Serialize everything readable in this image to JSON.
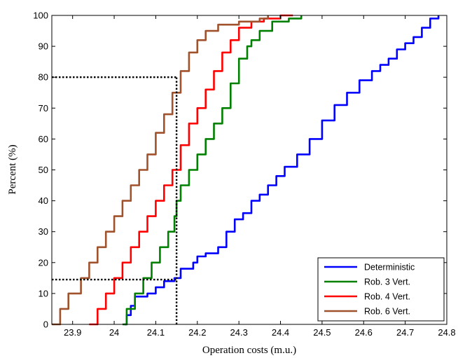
{
  "chart_data": {
    "type": "line",
    "title": "",
    "xlabel": "Operation costs (m.u.)",
    "ylabel": "Percent (%)",
    "xlim": [
      23.85,
      24.8
    ],
    "ylim": [
      0,
      100
    ],
    "x_ticks": [
      23.9,
      24,
      24.1,
      24.2,
      24.3,
      24.4,
      24.5,
      24.6,
      24.7,
      24.8
    ],
    "x_tick_labels": [
      "23.9",
      "24",
      "24.1",
      "24.2",
      "24.3",
      "24.4",
      "24.5",
      "24.6",
      "24.7",
      "24.8"
    ],
    "y_ticks": [
      0,
      10,
      20,
      30,
      40,
      50,
      60,
      70,
      80,
      90,
      100
    ],
    "y_tick_labels": [
      "0",
      "10",
      "20",
      "30",
      "40",
      "50",
      "60",
      "70",
      "80",
      "90",
      "100"
    ],
    "grid": false,
    "legend_position": "bottom-right",
    "series": [
      {
        "name": "Deterministic",
        "color": "#0000ff",
        "x": [
          24.025,
          24.03,
          24.04,
          24.05,
          24.08,
          24.1,
          24.12,
          24.145,
          24.16,
          24.19,
          24.2,
          24.22,
          24.25,
          24.27,
          24.29,
          24.31,
          24.33,
          24.35,
          24.37,
          24.39,
          24.41,
          24.44,
          24.47,
          24.5,
          24.53,
          24.56,
          24.59,
          24.62,
          24.64,
          24.66,
          24.68,
          24.7,
          24.72,
          24.74,
          24.76,
          24.78
        ],
        "y": [
          0,
          3,
          6,
          9,
          10,
          12,
          14,
          15,
          18,
          20,
          22,
          23,
          25,
          30,
          34,
          36,
          40,
          42,
          45,
          48,
          51,
          55,
          60,
          66,
          71,
          75,
          79,
          82,
          84,
          86,
          89,
          91,
          93,
          96,
          99,
          100
        ]
      },
      {
        "name": "Rob. 3 Vert.",
        "color": "#008000",
        "x": [
          24.02,
          24.03,
          24.05,
          24.07,
          24.09,
          24.11,
          24.13,
          24.145,
          24.15,
          24.16,
          24.18,
          24.2,
          24.22,
          24.24,
          24.26,
          24.28,
          24.3,
          24.32,
          24.33,
          24.35,
          24.38,
          24.42,
          24.45
        ],
        "y": [
          0,
          5,
          10,
          15,
          20,
          25,
          30,
          35,
          40,
          45,
          50,
          55,
          60,
          65,
          70,
          78,
          86,
          90,
          92,
          95,
          98,
          99,
          100
        ]
      },
      {
        "name": "Rob. 4 Vert.",
        "color": "#ff0000",
        "x": [
          23.94,
          23.96,
          23.98,
          24.0,
          24.02,
          24.04,
          24.06,
          24.08,
          24.1,
          24.12,
          24.14,
          24.16,
          24.18,
          24.2,
          24.22,
          24.24,
          24.26,
          24.28,
          24.3,
          24.33,
          24.36,
          24.4,
          24.43
        ],
        "y": [
          0,
          5,
          10,
          15,
          20,
          25,
          30,
          35,
          40,
          45,
          50,
          58,
          65,
          70,
          76,
          82,
          88,
          92,
          96,
          98,
          99,
          100,
          100
        ]
      },
      {
        "name": "Rob. 6 Vert.",
        "color": "#a0522d",
        "x": [
          23.85,
          23.87,
          23.89,
          23.92,
          23.94,
          23.96,
          23.98,
          24.0,
          24.02,
          24.04,
          24.06,
          24.08,
          24.1,
          24.12,
          24.14,
          24.16,
          24.18,
          24.2,
          24.22,
          24.25,
          24.3,
          24.35,
          24.37
        ],
        "y": [
          0,
          5,
          10,
          15,
          20,
          25,
          30,
          35,
          40,
          45,
          50,
          55,
          62,
          68,
          75,
          82,
          88,
          92,
          95,
          97,
          98,
          99,
          100
        ]
      }
    ],
    "reference_lines": [
      {
        "orientation": "horizontal",
        "y": 80,
        "x_from": 23.85,
        "x_to": 24.15,
        "style": "dotted",
        "color": "#000000"
      },
      {
        "orientation": "horizontal",
        "y": 14.5,
        "x_from": 23.85,
        "x_to": 24.15,
        "style": "dotted",
        "color": "#000000"
      },
      {
        "orientation": "vertical",
        "x": 24.15,
        "y_from": 0,
        "y_to": 80,
        "style": "dotted",
        "color": "#000000"
      }
    ]
  }
}
